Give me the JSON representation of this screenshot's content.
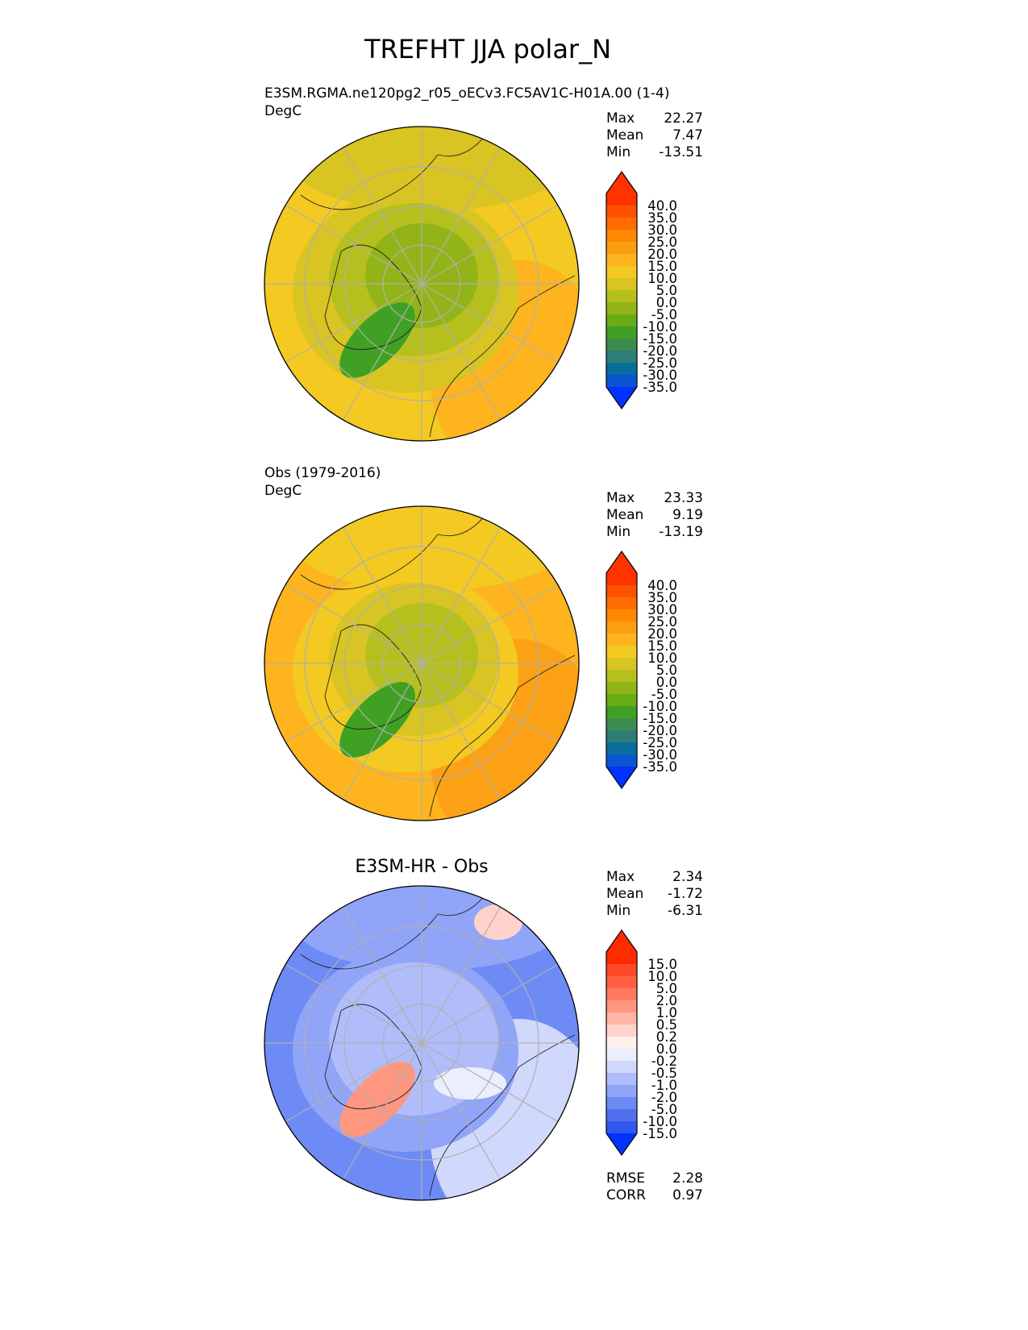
{
  "title": "TREFHT JJA polar_N",
  "panels": [
    {
      "subtitle": "E3SM.RGMA.ne120pg2_r05_oECv3.FC5AV1C-H01A.00 (1-4)",
      "units": "DegC",
      "stats": [
        {
          "label": "Max",
          "value": "22.27"
        },
        {
          "label": "Mean",
          "value": "7.47"
        },
        {
          "label": "Min",
          "value": "-13.51"
        }
      ],
      "colorbar": {
        "labels": [
          "40.0",
          "35.0",
          "30.0",
          "25.0",
          "20.0",
          "15.0",
          "10.0",
          "5.0",
          "0.0",
          "-5.0",
          "-10.0",
          "-15.0",
          "-20.0",
          "-25.0",
          "-30.0",
          "-35.0"
        ],
        "colors": [
          "#ff3300",
          "#ff5200",
          "#ff6c00",
          "#ff8800",
          "#fc9e12",
          "#fdb41e",
          "#f3c922",
          "#d8c422",
          "#b5c01e",
          "#92b418",
          "#6aac18",
          "#40a024",
          "#3c8c50",
          "#2e7d78",
          "#0a6e9c",
          "#0a55d0",
          "#0033ff"
        ]
      },
      "map_colors": {
        "base": "#f3c922",
        "mid": "#d8c422",
        "inner": "#b5c01e",
        "core": "#92b418",
        "cold": "#40a024",
        "warm": "#fdb41e"
      }
    },
    {
      "subtitle": "Obs (1979-2016)",
      "units": "DegC",
      "stats": [
        {
          "label": "Max",
          "value": "23.33"
        },
        {
          "label": "Mean",
          "value": "9.19"
        },
        {
          "label": "Min",
          "value": "-13.19"
        }
      ],
      "colorbar": {
        "labels": [
          "40.0",
          "35.0",
          "30.0",
          "25.0",
          "20.0",
          "15.0",
          "10.0",
          "5.0",
          "0.0",
          "-5.0",
          "-10.0",
          "-15.0",
          "-20.0",
          "-25.0",
          "-30.0",
          "-35.0"
        ],
        "colors": [
          "#ff3300",
          "#ff5200",
          "#ff6c00",
          "#ff8800",
          "#fc9e12",
          "#fdb41e",
          "#f3c922",
          "#d8c422",
          "#b5c01e",
          "#92b418",
          "#6aac18",
          "#40a024",
          "#3c8c50",
          "#2e7d78",
          "#0a6e9c",
          "#0a55d0",
          "#0033ff"
        ]
      },
      "map_colors": {
        "base": "#fdb41e",
        "mid": "#f3c922",
        "inner": "#d8c422",
        "core": "#b5c01e",
        "cold": "#40a024",
        "warm": "#fca015"
      }
    },
    {
      "title": "E3SM-HR - Obs",
      "stats": [
        {
          "label": "Max",
          "value": "2.34"
        },
        {
          "label": "Mean",
          "value": "-1.72"
        },
        {
          "label": "Min",
          "value": "-6.31"
        }
      ],
      "colorbar": {
        "labels": [
          "15.0",
          "10.0",
          "5.0",
          "2.0",
          "1.0",
          "0.5",
          "0.2",
          "0.0",
          "-0.2",
          "-0.5",
          "-1.0",
          "-2.0",
          "-5.0",
          "-10.0",
          "-15.0"
        ],
        "colors": [
          "#ff2b00",
          "#ff4a2a",
          "#ff6040",
          "#ff7a60",
          "#ff9680",
          "#ffb4a8",
          "#ffd2cc",
          "#fff0ee",
          "#ebeefc",
          "#d0d8fb",
          "#b0bdfa",
          "#90a4f8",
          "#6e8af5",
          "#5070f0",
          "#3357ee",
          "#0033ff"
        ]
      },
      "metrics": [
        {
          "label": "RMSE",
          "value": "2.28"
        },
        {
          "label": "CORR",
          "value": "0.97"
        }
      ],
      "map_colors": {
        "base": "#6e8af5",
        "mid": "#90a4f8",
        "inner": "#b0bdfa",
        "core": "#b0bdfa",
        "cold": "#ff9680",
        "warm": "#d0d8fb"
      }
    }
  ]
}
